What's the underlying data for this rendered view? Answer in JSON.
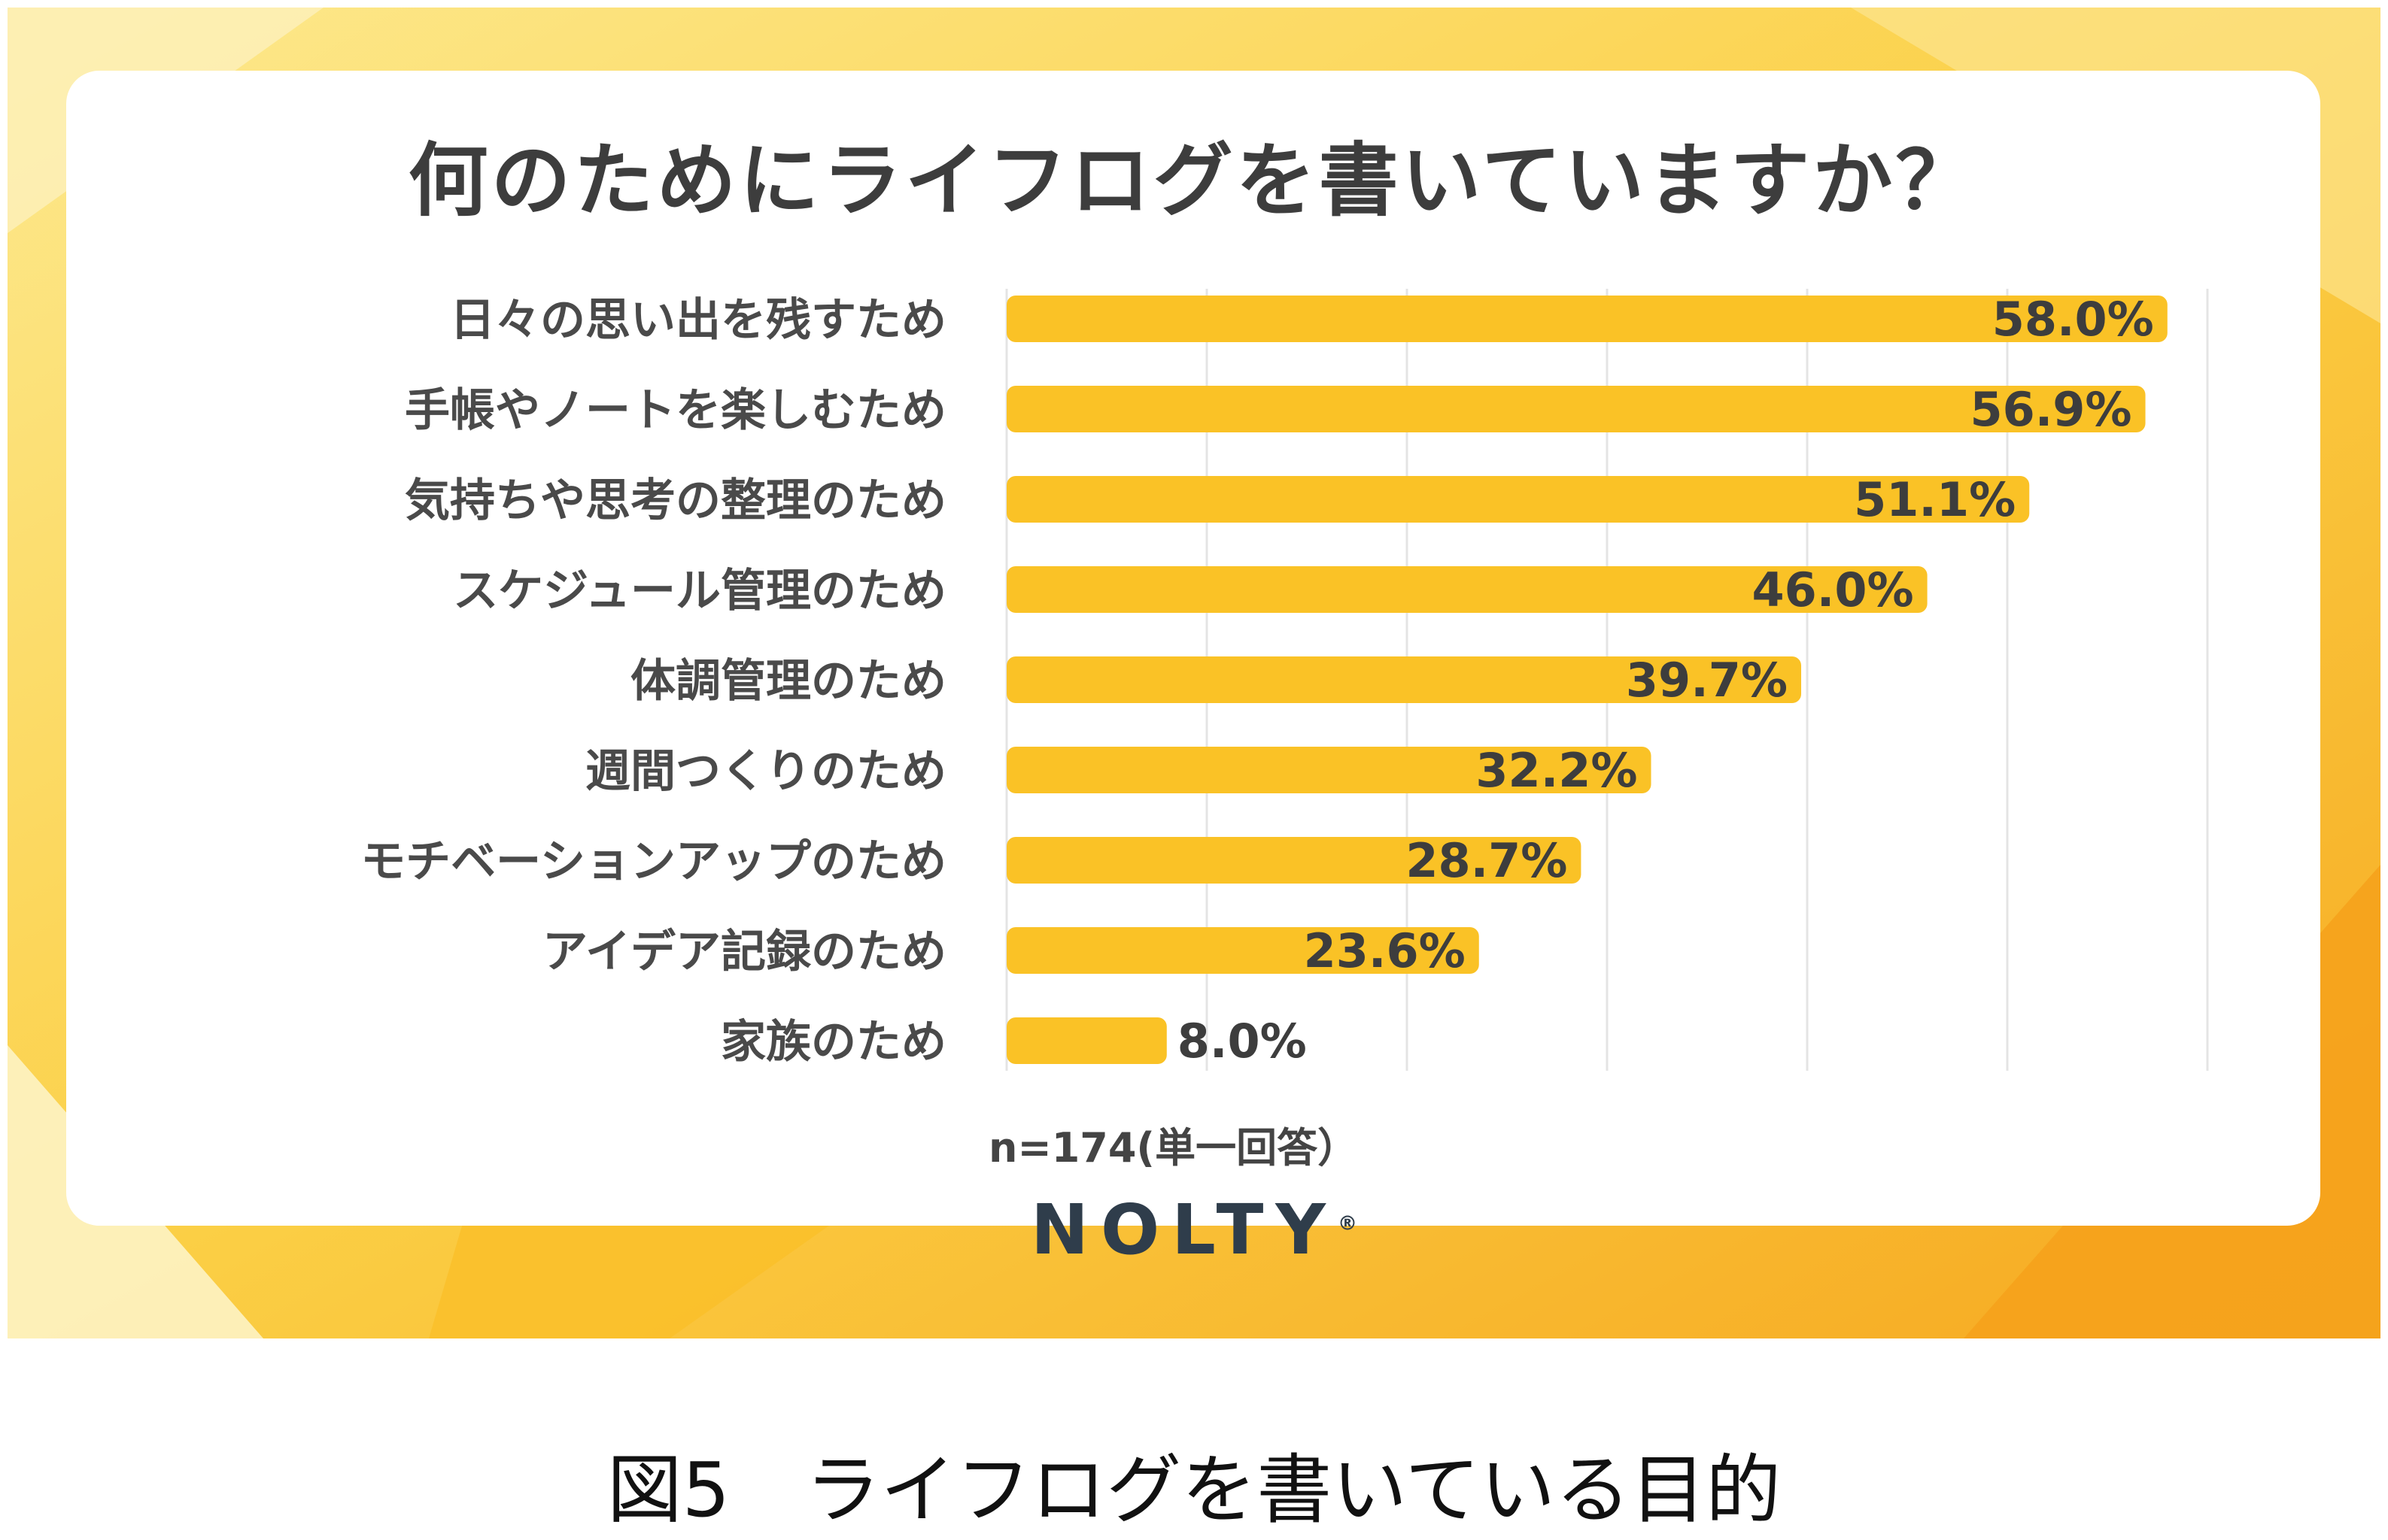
{
  "chart_data": {
    "type": "bar",
    "orientation": "horizontal",
    "title": "何のためにライフログを書いていますか？",
    "categories": [
      "日々の思い出を残すため",
      "手帳やノートを楽しむため",
      "気持ちや思考の整理のため",
      "スケジュール管理のため",
      "体調管理のため",
      "週間つくりのため",
      "モチベーションアップのため",
      "アイデア記録のため",
      "家族のため"
    ],
    "values": [
      58.0,
      56.9,
      51.1,
      46.0,
      39.7,
      32.2,
      28.7,
      23.6,
      8.0
    ],
    "value_labels": [
      "58.0%",
      "56.9%",
      "51.1%",
      "46.0%",
      "39.7%",
      "32.2%",
      "28.7%",
      "23.6%",
      "8.0%"
    ],
    "xlim": [
      0,
      60
    ],
    "grid": true,
    "bar_color": "#fac226",
    "note": "n=174(単一回答）"
  },
  "brand": {
    "logo_text": "NOLTY",
    "registered_mark": "®"
  },
  "caption": "図5　ライフログを書いている目的",
  "colors": {
    "banner_light": "#fdf0b8",
    "banner_mid": "#fbd24a",
    "banner_deep": "#f6a820",
    "bar": "#fac226",
    "gridline": "#e4e4e4",
    "text_dark": "#3d3d3d"
  }
}
